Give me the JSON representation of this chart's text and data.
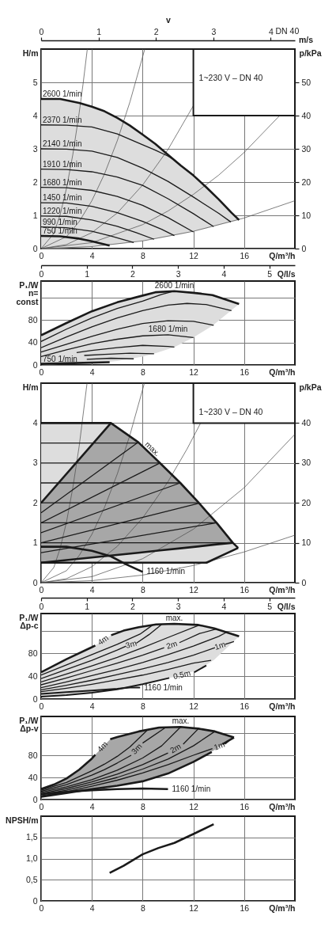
{
  "chart_data": [
    {
      "type": "line",
      "xlabel": "Q/m³/h",
      "ylabel": "H/m",
      "y2label": "p/kPa",
      "x2label": "v",
      "xlim": [
        0,
        20
      ],
      "xticks": [
        0,
        4,
        8,
        12,
        16
      ],
      "ylim": [
        0,
        6
      ],
      "yticks": [
        0,
        1,
        2,
        3,
        4,
        5
      ],
      "y2lim": [
        0,
        60
      ],
      "y2ticks": [
        0,
        10,
        20,
        30,
        40,
        50
      ],
      "x2lim": [
        0,
        4.42
      ],
      "x2ticks": [
        0,
        1,
        2,
        3,
        4
      ],
      "grid": true,
      "annotations": [
        "m/s",
        "DN 40",
        "1~230 V – DN 40"
      ],
      "series": [
        {
          "color": "#4a4a4a",
          "x": [
            0,
            1,
            1.5,
            2,
            2.5,
            3,
            3.3,
            3.64
          ],
          "values": [
            0,
            0.45,
            1.02,
            1.81,
            2.83,
            4.08,
            4.93,
            6
          ]
        },
        {
          "color": "#4a4a4a",
          "x": [
            0,
            2,
            3,
            4,
            5,
            6,
            7,
            8.17
          ],
          "values": [
            0,
            0.36,
            0.81,
            1.44,
            2.25,
            3.24,
            4.41,
            6
          ]
        },
        {
          "color": "#4a4a4a",
          "x": [
            0,
            2,
            4,
            6,
            8,
            10,
            12.05
          ],
          "values": [
            0,
            0.12,
            0.48,
            1.07,
            1.91,
            2.98,
            4.33
          ]
        },
        {
          "color": "#4a4a4a",
          "x": [
            0,
            4,
            8,
            10,
            12,
            14,
            16,
            18.8
          ],
          "values": [
            0,
            0.18,
            0.72,
            1.13,
            1.63,
            2.21,
            2.89,
            4
          ]
        },
        {
          "color": "#4a4a4a",
          "x": [
            0,
            4,
            8,
            12,
            16,
            20
          ],
          "values": [
            0,
            0.06,
            0.23,
            0.52,
            0.92,
            1.44
          ]
        },
        {
          "name": "2600 1/min",
          "color": "#1a1a1a",
          "x": [
            0,
            1.5,
            3,
            4,
            5,
            6,
            7,
            8,
            9,
            10,
            11,
            12,
            13,
            14,
            15,
            15.6
          ],
          "values": [
            4.5,
            4.5,
            4.38,
            4.27,
            4.13,
            3.93,
            3.7,
            3.43,
            3.15,
            2.82,
            2.5,
            2.2,
            1.85,
            1.48,
            1.08,
            0.86
          ],
          "lower": [
            0,
            0.01,
            0.03,
            0.06,
            0.09,
            0.13,
            0.18,
            0.23,
            0.29,
            0.36,
            0.43,
            0.52,
            0.6,
            0.7,
            0.8,
            0.86
          ],
          "upper": [
            4.5,
            4.5,
            4.38,
            4.27,
            4.13,
            3.93,
            3.7,
            3.43,
            3.15,
            2.82,
            2.5,
            2.2,
            1.85,
            1.48,
            1.08,
            0.86
          ]
        },
        {
          "name": "2370 1/min",
          "color": "#1a1a1a",
          "x": [
            0,
            2,
            4,
            6,
            8,
            9,
            10,
            10.5
          ],
          "values": [
            3.72,
            3.71,
            3.66,
            3.45,
            3.12,
            2.96,
            2.78,
            2.66
          ]
        },
        {
          "name": "2140 1/min",
          "color": "#1a1a1a",
          "x": [
            0,
            2,
            4,
            6,
            8,
            10,
            12,
            14,
            14.95
          ],
          "values": [
            3,
            2.99,
            2.93,
            2.74,
            2.42,
            2.02,
            1.55,
            1.06,
            0.8
          ]
        },
        {
          "name": "1910 1/min",
          "color": "#1a1a1a",
          "x": [
            0,
            2,
            4,
            6,
            8,
            10,
            12,
            13.6
          ],
          "values": [
            2.39,
            2.38,
            2.31,
            2.15,
            1.9,
            1.5,
            1.05,
            0.66
          ]
        },
        {
          "name": "1680 1/min",
          "color": "#1a1a1a",
          "x": [
            0,
            2,
            4,
            6,
            8,
            10,
            12
          ],
          "values": [
            1.84,
            1.83,
            1.75,
            1.57,
            1.3,
            0.93,
            0.5
          ]
        },
        {
          "name": "1450 1/min",
          "color": "#1a1a1a",
          "x": [
            0,
            2,
            4,
            6,
            8,
            9.5,
            10.5
          ],
          "values": [
            1.38,
            1.37,
            1.27,
            1.08,
            0.82,
            0.58,
            0.39
          ]
        },
        {
          "name": "1220 1/min",
          "color": "#1a1a1a",
          "x": [
            0,
            2,
            4,
            6,
            7.5,
            8.9
          ],
          "values": [
            0.98,
            0.97,
            0.86,
            0.67,
            0.48,
            0.28
          ]
        },
        {
          "name": "990 1/min",
          "color": "#1a1a1a",
          "x": [
            0,
            2,
            4,
            5.5,
            7.3
          ],
          "values": [
            0.65,
            0.63,
            0.52,
            0.38,
            0.18
          ]
        },
        {
          "name": "750 1/min",
          "color": "#1a1a1a",
          "x": [
            0,
            1.5,
            3,
            4,
            5.4
          ],
          "values": [
            0.38,
            0.37,
            0.3,
            0.22,
            0.09
          ]
        }
      ]
    },
    {
      "type": "line",
      "xlabel": "Q/m³/h",
      "ylabel": "P₁/W\nn=\nconst",
      "x2label": "Q/l/s",
      "xlim": [
        0,
        20
      ],
      "xticks": [
        0,
        4,
        8,
        12,
        16
      ],
      "ylim": [
        0,
        150
      ],
      "yticks": [
        0,
        40,
        80,
        {
          "value": 120,
          "label": null
        }
      ],
      "x2lim": [
        0,
        5.56
      ],
      "x2ticks": [
        0,
        1,
        2,
        3,
        4,
        5
      ],
      "grid": true,
      "series": [
        {
          "name": "2600 1/min",
          "color": "#1a1a1a",
          "x": [
            0,
            2,
            4,
            6,
            8,
            9,
            10.5,
            12,
            13.5,
            15.6
          ],
          "values": [
            53,
            75,
            96,
            112,
            124,
            130,
            132,
            129,
            125,
            109
          ],
          "lower": [
            0,
            2,
            3,
            7,
            15,
            21,
            32,
            49,
            70,
            109
          ],
          "upper": [
            53,
            75,
            96,
            112,
            124,
            130,
            132,
            129,
            125,
            109
          ]
        },
        {
          "color": "#1a1a1a",
          "x": [
            0,
            2,
            4,
            6,
            8,
            9.5,
            10.5
          ],
          "values": [
            42,
            64,
            84,
            101,
            114,
            126,
            132
          ]
        },
        {
          "color": "#1a1a1a",
          "x": [
            0,
            2,
            4,
            6,
            8,
            10,
            11.5,
            13,
            15
          ],
          "values": [
            31,
            50,
            68,
            84,
            97,
            107,
            110,
            108,
            97
          ]
        },
        {
          "color": "#1a1a1a",
          "x": [
            0,
            2,
            4,
            6,
            8,
            10,
            12,
            13.6
          ],
          "values": [
            23,
            37,
            51,
            64,
            74,
            79,
            78,
            71
          ]
        },
        {
          "name": "1680 1/min",
          "color": "#1a1a1a",
          "x": [
            0,
            2,
            4,
            6,
            8,
            10,
            12
          ],
          "values": [
            15,
            27,
            38,
            46,
            52,
            54,
            49
          ]
        },
        {
          "color": "#1a1a1a",
          "x": [
            2.8,
            4,
            6,
            8,
            10,
            10.5
          ],
          "values": [
            22,
            26,
            31,
            35,
            33,
            32
          ]
        },
        {
          "color": "#1a1a1a",
          "x": [
            3.4,
            5,
            7,
            8.9
          ],
          "values": [
            17,
            19,
            21,
            20
          ]
        },
        {
          "color": "#1a1a1a",
          "x": [
            3.6,
            5.5,
            7.3
          ],
          "values": [
            10,
            12,
            11
          ]
        },
        {
          "name": "750 1/min",
          "color": "#1a1a1a",
          "x": [
            0,
            2,
            5.4
          ],
          "values": [
            2,
            3,
            5
          ]
        }
      ]
    },
    {
      "type": "line",
      "xlabel": "Q/m³/h",
      "ylabel": "H/m",
      "y2label": "p/kPa",
      "xlim": [
        0,
        20
      ],
      "xticks": [
        0,
        4,
        8,
        12,
        16
      ],
      "ylim": [
        0,
        5
      ],
      "yticks": [
        0,
        1,
        2,
        3,
        4
      ],
      "y2lim": [
        0,
        50
      ],
      "y2ticks": [
        0,
        10,
        20,
        30,
        40
      ],
      "grid": true,
      "annotations": [
        "1~230 V – DN 40"
      ],
      "series": [
        {
          "color": "#4a4a4a",
          "x": [
            0,
            1,
            1.5,
            2,
            2.5,
            3,
            3.62
          ],
          "values": [
            0,
            0.38,
            0.86,
            1.52,
            2.38,
            3.42,
            5
          ]
        },
        {
          "color": "#4a4a4a",
          "x": [
            0,
            2,
            3,
            4,
            5,
            6,
            7,
            8.14
          ],
          "values": [
            0,
            0.3,
            0.68,
            1.21,
            1.89,
            2.72,
            3.7,
            5
          ]
        },
        {
          "color": "#4a4a4a",
          "x": [
            0,
            2,
            4,
            6,
            8,
            10,
            11.5,
            12.57
          ],
          "values": [
            0,
            0.1,
            0.4,
            0.91,
            1.62,
            2.53,
            3.35,
            4
          ]
        },
        {
          "color": "#4a4a4a",
          "x": [
            0,
            4,
            8,
            12,
            16,
            20
          ],
          "values": [
            0,
            0.15,
            0.6,
            1.34,
            2.38,
            3.72
          ]
        },
        {
          "color": "#4a4a4a",
          "x": [
            0,
            4,
            8,
            12,
            16,
            20
          ],
          "values": [
            0,
            0.05,
            0.19,
            0.43,
            0.77,
            1.19
          ]
        },
        {
          "color": "#1a1a1a",
          "x": [
            0,
            7.66
          ],
          "values": [
            3.5,
            3.5
          ]
        },
        {
          "color": "#1a1a1a",
          "x": [
            0,
            9.36
          ],
          "values": [
            3,
            3
          ]
        },
        {
          "color": "#1a1a1a",
          "x": [
            0,
            10.97
          ],
          "values": [
            2.5,
            2.5
          ]
        },
        {
          "color": "#1a1a1a",
          "x": [
            0,
            12.46
          ],
          "values": [
            2,
            2
          ]
        },
        {
          "color": "#1a1a1a",
          "x": [
            0,
            13.83
          ],
          "values": [
            1.5,
            1.5
          ]
        },
        {
          "color": "#1a1a1a",
          "x": [
            0,
            15.11
          ],
          "values": [
            1,
            1
          ]
        },
        {
          "color": "#1a1a1a",
          "x": [
            0,
            7.66
          ],
          "values": [
            1.75,
            3.52
          ]
        },
        {
          "color": "#1a1a1a",
          "x": [
            0,
            9.36
          ],
          "values": [
            1.5,
            3
          ]
        },
        {
          "color": "#1a1a1a",
          "x": [
            0,
            10.97
          ],
          "values": [
            1.25,
            2.5
          ]
        },
        {
          "color": "#1a1a1a",
          "x": [
            0,
            12.46
          ],
          "values": [
            1,
            1.99
          ]
        },
        {
          "color": "#1a1a1a",
          "x": [
            0,
            13.83
          ],
          "values": [
            0.75,
            1.5
          ]
        },
        {
          "name": "max.",
          "color": "#1a1a1a",
          "x": [
            0,
            5.5,
            7.66,
            9.36,
            10.97,
            12.46,
            13.04,
            13.83,
            15.11,
            15.53
          ],
          "values": [
            4,
            4,
            3.52,
            3,
            2.5,
            1.99,
            1.78,
            1.5,
            1,
            0.87
          ],
          "lower": [
            0.5,
            0.5,
            0.5,
            0.5,
            0.5,
            0.5,
            0.5,
            0.62,
            0.8,
            0.87
          ],
          "upper": [
            4,
            4,
            3.52,
            3,
            2.5,
            1.99,
            1.78,
            1.5,
            1,
            0.87
          ]
        },
        {
          "color": "#1a1a1a",
          "x": [
            15.53,
            13.04,
            0
          ],
          "values": [
            0.87,
            0.5,
            0.5
          ]
        },
        {
          "color": "#1a1a1a",
          "x": [
            0,
            5.5
          ],
          "values": [
            2,
            4
          ]
        },
        {
          "color": "#1a1a1a",
          "x": [
            0,
            5.5,
            7.66,
            9.36,
            10.97,
            12.46,
            13.83,
            15.11
          ],
          "values": [
            0.5,
            0.68,
            0.75,
            0.81,
            0.86,
            0.91,
            0.96,
            1
          ],
          "lower": [
            0.5,
            0.68,
            0.75,
            0.81,
            0.86,
            0.91,
            0.96,
            1
          ],
          "upper": [
            2,
            4,
            3.52,
            3,
            2.5,
            1.99,
            1.5,
            1
          ]
        },
        {
          "name": "1160 1/min",
          "color": "#1a1a1a",
          "x": [
            0,
            2,
            4,
            5.5,
            6.7,
            8
          ],
          "values": [
            0.9,
            0.9,
            0.8,
            0.66,
            0.46,
            0.27
          ]
        }
      ]
    },
    {
      "type": "line",
      "xlabel": "Q/m³/h",
      "ylabel": "P₁/W\nΔp-c",
      "x2label": "Q/l/s",
      "xlim": [
        0,
        20
      ],
      "xticks": [
        0,
        4,
        8,
        12,
        16
      ],
      "ylim": [
        0,
        150
      ],
      "yticks": [
        0,
        40,
        80,
        {
          "value": 120,
          "label": null
        }
      ],
      "x2lim": [
        0,
        5.56
      ],
      "x2ticks": [
        0,
        1,
        2,
        3,
        4,
        5
      ],
      "grid": true,
      "annotations": [
        {
          "text": "4m",
          "x": 4.9,
          "y": 103
        }
      ],
      "series": [
        {
          "name": "max.",
          "color": "#1a1a1a",
          "x": [
            0,
            2,
            4,
            4.27,
            4.9,
            5.52,
            6.5,
            7.7,
            9.06,
            10.5,
            12.4,
            13.65,
            15.6
          ],
          "values": [
            47,
            70,
            91,
            94,
            null,
            112,
            120,
            126,
            131,
            132,
            130,
            124,
            110
          ],
          "lower": [
            4,
            7,
            11,
            12,
            13,
            15,
            19,
            25,
            32,
            39,
            51,
            69,
            110
          ],
          "upper": [
            47,
            70,
            91,
            94,
            103,
            112,
            120,
            126,
            131,
            132,
            130,
            124,
            110
          ]
        },
        {
          "color": "#1a1a1a",
          "x": [
            0,
            2,
            4,
            6,
            7.8,
            8.8
          ],
          "values": [
            42,
            60,
            78,
            96,
            114,
            130
          ]
        },
        {
          "name": "3m",
          "color": "#1a1a1a",
          "x": [
            0,
            2,
            4,
            6,
            6.7,
            7.1,
            7.5,
            8.5,
            9.5
          ],
          "values": [
            36,
            52,
            68,
            86,
            93,
            null,
            98,
            113,
            131
          ]
        },
        {
          "color": "#1a1a1a",
          "x": [
            0,
            2,
            4,
            6,
            8,
            10,
            12.5
          ],
          "values": [
            30,
            44,
            58,
            73,
            90,
            108,
            130
          ]
        },
        {
          "name": "2m",
          "color": "#1a1a1a",
          "x": [
            0,
            2,
            4,
            6,
            8,
            9.7,
            10.3,
            10.9,
            12.5,
            13.85
          ],
          "values": [
            25,
            37,
            50,
            63,
            77,
            90,
            null,
            99,
            115,
            123
          ]
        },
        {
          "color": "#1a1a1a",
          "x": [
            0,
            2,
            4,
            6,
            8,
            10,
            12,
            14,
            14.6
          ],
          "values": [
            20,
            30,
            41,
            52,
            64,
            78,
            93,
            110,
            117
          ]
        },
        {
          "name": "1m",
          "color": "#1a1a1a",
          "x": [
            0,
            2,
            4,
            6,
            8,
            10,
            12,
            13.7,
            14.1,
            14.5,
            15.2
          ],
          "values": [
            16,
            24,
            33,
            43,
            53,
            64,
            77,
            90,
            null,
            96,
            101
          ]
        },
        {
          "color": "#1a1a1a",
          "x": [
            0,
            2,
            4,
            6,
            8,
            10,
            12,
            13.4
          ],
          "values": [
            13,
            19,
            26,
            34,
            42,
            52,
            63,
            68
          ]
        },
        {
          "name": "0.5m",
          "color": "#1a1a1a",
          "x": [
            0,
            2,
            4,
            6,
            8,
            10.1,
            11.1,
            12.08,
            13.02
          ],
          "values": [
            4,
            7,
            11,
            17,
            26,
            37,
            null,
            47,
            59
          ]
        },
        {
          "name": "1160 1/min",
          "color": "#1a1a1a",
          "x": [
            0,
            2,
            4,
            6,
            7,
            7.8
          ],
          "values": [
            9,
            12,
            15,
            18,
            20,
            20
          ]
        }
      ]
    },
    {
      "type": "line",
      "xlabel": "Q/m³/h",
      "ylabel": "P₁/W\nΔp-v",
      "xlim": [
        0,
        20
      ],
      "xticks": [
        0,
        4,
        8,
        12,
        16
      ],
      "ylim": [
        0,
        150
      ],
      "yticks": [
        0,
        40,
        80,
        {
          "value": 120,
          "label": null
        }
      ],
      "grid": true,
      "annotations": [
        {
          "text": "4m",
          "x": 4.85,
          "y": 95
        }
      ],
      "series": [
        {
          "name": "max.",
          "color": "#1a1a1a",
          "x": [
            0,
            1,
            2,
            3,
            4,
            4.27,
            4.85,
            5.45,
            6,
            7.7,
            9.3,
            11,
            12.4,
            13.7,
            15.2
          ],
          "values": [
            19,
            27,
            38,
            54,
            74,
            81,
            null,
            109,
            113,
            123,
            130,
            131,
            128,
            123,
            112
          ],
          "lower": [
            5,
            9,
            12,
            16,
            19,
            20,
            22,
            23,
            25,
            32,
            42,
            58,
            73,
            90,
            112
          ],
          "upper": [
            19,
            27,
            38,
            54,
            74,
            81,
            95,
            109,
            113,
            123,
            130,
            131,
            128,
            123,
            112
          ]
        },
        {
          "color": "#1a1a1a",
          "x": [
            15.2,
            14.3
          ],
          "values": [
            112,
            100
          ]
        },
        {
          "color": "#1a1a1a",
          "x": [
            0,
            2,
            4,
            5,
            6,
            7,
            8.4
          ],
          "values": [
            17,
            31,
            52,
            64,
            78,
            95,
            126
          ]
        },
        {
          "name": "3m",
          "color": "#1a1a1a",
          "x": [
            0,
            2,
            4,
            5,
            6,
            7.1,
            7.55,
            8,
            9.8
          ],
          "values": [
            15,
            27,
            44,
            54,
            66,
            80,
            null,
            102,
            130
          ]
        },
        {
          "color": "#1a1a1a",
          "x": [
            0,
            2,
            4,
            6,
            8,
            9.5,
            11
          ],
          "values": [
            13,
            23,
            36,
            53,
            75,
            97,
            131
          ]
        },
        {
          "name": "2m",
          "color": "#1a1a1a",
          "x": [
            0,
            2,
            4,
            6,
            8,
            10,
            10.6,
            11.2,
            12.4
          ],
          "values": [
            11,
            20,
            32,
            46,
            63,
            84,
            null,
            100,
            128
          ]
        },
        {
          "color": "#1a1a1a",
          "x": [
            0,
            2,
            4,
            6,
            8,
            10,
            12,
            13.7
          ],
          "values": [
            9,
            17,
            28,
            40,
            55,
            73,
            97,
            123
          ]
        },
        {
          "name": "1m",
          "color": "#1a1a1a",
          "x": [
            0,
            2,
            4,
            6,
            8,
            10,
            12,
            13.5,
            14.05,
            14.5,
            14.8
          ],
          "values": [
            7,
            14,
            24,
            35,
            48,
            63,
            80,
            92,
            null,
            100,
            106
          ]
        },
        {
          "color": "#1a1a1a",
          "x": [
            0,
            2,
            4,
            6,
            8,
            10,
            12,
            13.45
          ],
          "values": [
            5,
            12,
            19,
            25,
            33,
            47,
            68,
            86
          ]
        },
        {
          "name": "1160 1/min",
          "color": "#1a1a1a",
          "x": [
            0,
            2,
            4,
            6,
            8,
            10
          ],
          "values": [
            10,
            14,
            17,
            19,
            20,
            19
          ]
        }
      ]
    },
    {
      "type": "line",
      "xlabel": "Q/m³/h",
      "ylabel": "NPSH/m",
      "xlim": [
        0,
        20
      ],
      "xticks": [
        0,
        4,
        8,
        12,
        16
      ],
      "ylim": [
        0,
        2
      ],
      "yticks": [
        0,
        {
          "value": 0.5,
          "label": "0,5"
        },
        {
          "value": 1,
          "label": "1,0"
        },
        {
          "value": 1.5,
          "label": "1,5"
        }
      ],
      "grid": true,
      "series": [
        {
          "color": "#1a1a1a",
          "x": [
            5.4,
            6.5,
            8,
            9.25,
            10.5,
            12,
            13.6
          ],
          "values": [
            0.66,
            0.83,
            1.1,
            1.25,
            1.37,
            1.58,
            1.81
          ]
        }
      ]
    }
  ]
}
